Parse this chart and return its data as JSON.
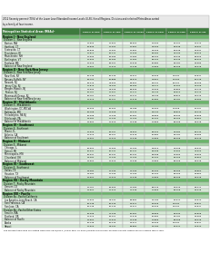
{
  "title_line1": "2012 Seventy percent (70%) of the Lower Level Standard Income Levels (LLSIL) for all Regions, Divisions and selected Metro Areas sorted",
  "title_line2": "by a family of four income.",
  "subtitle": "Metropolitan Statistical Areas (MSAs)¹",
  "col_headers": [
    "Family of One",
    "Family of Two",
    "Family of Three",
    "Family of Four",
    "Family of Five",
    "Family of Six"
  ],
  "rows": [
    {
      "label": "Region I - New England",
      "type": "region",
      "vals": [
        null,
        null,
        null,
        null,
        null,
        null
      ]
    },
    {
      "label": "  Division 1 - New England",
      "type": "division",
      "vals": [
        null,
        null,
        null,
        null,
        null,
        null
      ]
    },
    {
      "label": "  Boston, MA",
      "type": "msa",
      "vals": [
        17503,
        22960,
        28660,
        33530,
        38404,
        43273
      ]
    },
    {
      "label": "  Hartford, CT",
      "type": "msa",
      "vals": [
        16835,
        22092,
        27581,
        32266,
        36948,
        41631
      ]
    },
    {
      "label": "  Statewide, CT",
      "type": "msa",
      "vals": [
        16835,
        22092,
        27581,
        32266,
        36948,
        41631
      ]
    },
    {
      "label": "  Providence, RI",
      "type": "msa",
      "vals": [
        14814,
        19444,
        24268,
        28382,
        32499,
        36615
      ]
    },
    {
      "label": "  Manchester, NH",
      "type": "msa",
      "vals": [
        14693,
        19285,
        24080,
        28162,
        32245,
        36326
      ]
    },
    {
      "label": "  Burlington, VT",
      "type": "msa",
      "vals": [
        14693,
        19285,
        24080,
        28162,
        32245,
        36326
      ]
    },
    {
      "label": "  Portland, ME",
      "type": "msa",
      "vals": [
        14019,
        18401,
        22978,
        26882,
        30784,
        34685
      ]
    },
    {
      "label": "  Balance of New England",
      "type": "msa",
      "vals": [
        12964,
        17019,
        21248,
        24859,
        28468,
        32078
      ]
    },
    {
      "label": "Region II - New York/New Jersey",
      "type": "region",
      "vals": [
        null,
        null,
        null,
        null,
        null,
        null
      ]
    },
    {
      "label": "  Division 2 - New York/New Jersey",
      "type": "division",
      "vals": [
        null,
        null,
        null,
        null,
        null,
        null
      ]
    },
    {
      "label": "  New York, NY",
      "type": "msa",
      "vals": [
        20148,
        26449,
        33011,
        38625,
        44234,
        49847
      ]
    },
    {
      "label": "  Nassau-Suffolk, NY",
      "type": "msa",
      "vals": [
        19722,
        25888,
        32319,
        37807,
        43290,
        48778
      ]
    },
    {
      "label": "  Newark, NJ",
      "type": "msa",
      "vals": [
        18276,
        23993,
        29952,
        35041,
        40124,
        45208
      ]
    },
    {
      "label": "  Jersey City, NJ",
      "type": "msa",
      "vals": [
        17876,
        23469,
        29289,
        34271,
        39250,
        44228
      ]
    },
    {
      "label": "  Bergen-Passaic, NJ",
      "type": "msa",
      "vals": [
        17693,
        23228,
        28995,
        33926,
        38853,
        43779
      ]
    },
    {
      "label": "  Trenton, NJ",
      "type": "msa",
      "vals": [
        16767,
        22007,
        27471,
        32143,
        36810,
        41479
      ]
    },
    {
      "label": "  Monmouth-Ocean, NJ",
      "type": "msa",
      "vals": [
        16767,
        22007,
        27471,
        32143,
        36810,
        41479
      ]
    },
    {
      "label": "  Balance of New York/New Jersey",
      "type": "msa",
      "vals": [
        14019,
        18401,
        22978,
        26882,
        30784,
        34685
      ]
    },
    {
      "label": "Region III - Mid-Atlantic",
      "type": "region",
      "vals": [
        null,
        null,
        null,
        null,
        null,
        null
      ]
    },
    {
      "label": "  Division 3 - Mid-Atlantic",
      "type": "division",
      "vals": [
        null,
        null,
        null,
        null,
        null,
        null
      ]
    },
    {
      "label": "  Washington, DC-MD-VA",
      "type": "msa",
      "vals": [
        20006,
        26263,
        32788,
        38360,
        43928,
        49497
      ]
    },
    {
      "label": "  Baltimore, MD",
      "type": "msa",
      "vals": [
        16768,
        22008,
        27473,
        32144,
        36810,
        41479
      ]
    },
    {
      "label": "  Philadelphia, PA-NJ",
      "type": "msa",
      "vals": [
        16098,
        21128,
        26381,
        30859,
        35333,
        39808
      ]
    },
    {
      "label": "  Pittsburgh, PA",
      "type": "msa",
      "vals": [
        13284,
        17439,
        21765,
        25462,
        29155,
        32850
      ]
    },
    {
      "label": "  Balance of Mid-Atlantic",
      "type": "msa",
      "vals": [
        12964,
        17019,
        21248,
        24859,
        28468,
        32078
      ]
    },
    {
      "label": "Region IV - Southeast",
      "type": "region",
      "vals": [
        null,
        null,
        null,
        null,
        null,
        null
      ]
    },
    {
      "label": "  Division 4 - Southeast",
      "type": "division",
      "vals": [
        null,
        null,
        null,
        null,
        null,
        null
      ]
    },
    {
      "label": "  Miami, FL",
      "type": "msa",
      "vals": [
        14626,
        19197,
        23960,
        28022,
        32082,
        36143
      ]
    },
    {
      "label": "  Atlanta, GA",
      "type": "msa",
      "vals": [
        14019,
        18401,
        22978,
        26882,
        30784,
        34685
      ]
    },
    {
      "label": "  Balance of Southeast",
      "type": "msa",
      "vals": [
        12964,
        17019,
        21248,
        24859,
        28468,
        32078
      ]
    },
    {
      "label": "Region V - Midwest",
      "type": "region",
      "vals": [
        null,
        null,
        null,
        null,
        null,
        null
      ]
    },
    {
      "label": "  Division 5 - Midwest",
      "type": "division",
      "vals": [
        null,
        null,
        null,
        null,
        null,
        null
      ]
    },
    {
      "label": "  Chicago, IL",
      "type": "msa",
      "vals": [
        16964,
        22266,
        27790,
        32510,
        37228,
        41944
      ]
    },
    {
      "label": "  Detroit, MI",
      "type": "msa",
      "vals": [
        15337,
        20131,
        25131,
        29398,
        33663,
        37926
      ]
    },
    {
      "label": "  Minneapolis, MN",
      "type": "msa",
      "vals": [
        15337,
        20131,
        25131,
        29398,
        33663,
        37926
      ]
    },
    {
      "label": "  Cleveland, OH",
      "type": "msa",
      "vals": [
        13284,
        17439,
        21765,
        25462,
        29155,
        32850
      ]
    },
    {
      "label": "  Balance of Midwest",
      "type": "msa",
      "vals": [
        12964,
        17019,
        21248,
        24859,
        28468,
        32078
      ]
    },
    {
      "label": "Region VI - Southwest",
      "type": "region",
      "vals": [
        null,
        null,
        null,
        null,
        null,
        null
      ]
    },
    {
      "label": "  Division 6 - Southwest",
      "type": "division",
      "vals": [
        null,
        null,
        null,
        null,
        null,
        null
      ]
    },
    {
      "label": "  Dallas, TX",
      "type": "msa",
      "vals": [
        13284,
        17439,
        21765,
        25462,
        29155,
        32850
      ]
    },
    {
      "label": "  Houston, TX",
      "type": "msa",
      "vals": [
        13284,
        17439,
        21765,
        25462,
        29155,
        32850
      ]
    },
    {
      "label": "  Balance of Southwest",
      "type": "msa",
      "vals": [
        12964,
        17019,
        21248,
        24859,
        28468,
        32078
      ]
    },
    {
      "label": "Region VII - Rocky Mountain",
      "type": "region",
      "vals": [
        null,
        null,
        null,
        null,
        null,
        null
      ]
    },
    {
      "label": "  Division 7 - Rocky Mountain",
      "type": "division",
      "vals": [
        null,
        null,
        null,
        null,
        null,
        null
      ]
    },
    {
      "label": "  Denver, CO",
      "type": "msa",
      "vals": [
        14757,
        19369,
        24180,
        28279,
        32376,
        36471
      ]
    },
    {
      "label": "  Balance of Rocky Mountain",
      "type": "msa",
      "vals": [
        12964,
        17019,
        21248,
        24859,
        28468,
        32078
      ]
    },
    {
      "label": "Region VIII - Pacific",
      "type": "region",
      "vals": [
        null,
        null,
        null,
        null,
        null,
        null
      ]
    },
    {
      "label": "  Division 8a - Pacific/California",
      "type": "division",
      "vals": [
        null,
        null,
        null,
        null,
        null,
        null
      ]
    },
    {
      "label": "  Los Angeles-Long Beach, CA",
      "type": "msa",
      "vals": [
        17623,
        23134,
        28882,
        33780,
        38674,
        43570
      ]
    },
    {
      "label": "  San Francisco, CA",
      "type": "msa",
      "vals": [
        20148,
        26449,
        33011,
        38625,
        44234,
        49847
      ]
    },
    {
      "label": "  San Jose, CA",
      "type": "msa",
      "vals": [
        20148,
        26449,
        33011,
        38625,
        44234,
        49847
      ]
    },
    {
      "label": "  Division 8b - Pacific/Other States",
      "type": "division",
      "vals": [
        null,
        null,
        null,
        null,
        null,
        null
      ]
    },
    {
      "label": "  Seattle, WA",
      "type": "msa",
      "vals": [
        16098,
        21128,
        26381,
        30859,
        35333,
        39808
      ]
    },
    {
      "label": "  Portland, OR",
      "type": "msa",
      "vals": [
        14019,
        18401,
        22978,
        26882,
        30784,
        34685
      ]
    },
    {
      "label": "  Balance of Pacific",
      "type": "msa",
      "vals": [
        12964,
        17019,
        21248,
        24859,
        28468,
        32078
      ]
    },
    {
      "label": "Alaska",
      "type": "msa",
      "vals": [
        20148,
        26449,
        33011,
        38625,
        44234,
        49847
      ]
    },
    {
      "label": "Hawaii",
      "type": "msa",
      "vals": [
        17623,
        23134,
        28882,
        33780,
        38674,
        43570
      ]
    }
  ],
  "footnote": "¹ The income table was calculated from HHS 2012/2013 (Lower than 70-2012) Health and Human Services Poverty Guidelines for a given family size.",
  "header_bg": "#3d7a3d",
  "region_bg": "#6ab56a",
  "division_bg": "#a8d4a8",
  "msa_bg_even": "#d5ead5",
  "msa_bg_odd": "#eef6ee",
  "title_bg": "#e8e8e8",
  "border_color": "#aaaaaa",
  "text_color": "#000000"
}
